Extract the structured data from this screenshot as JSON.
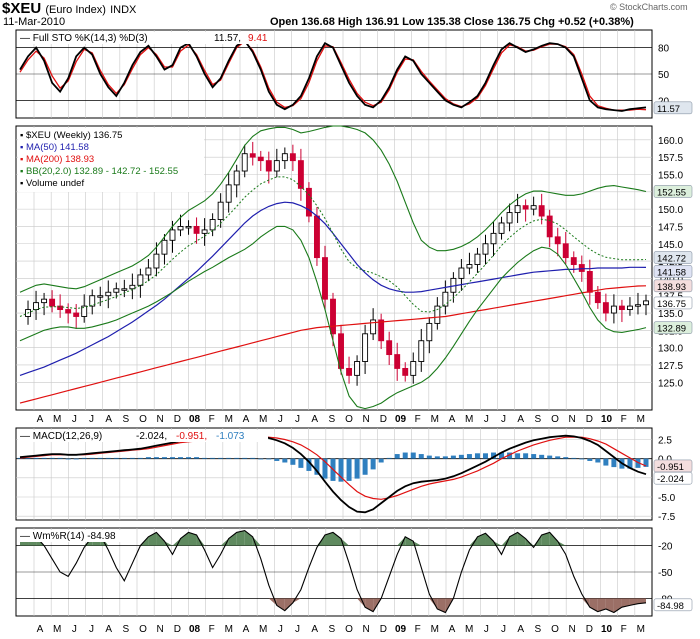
{
  "header": {
    "symbol": "$XEU",
    "name": "(Euro Index)",
    "exchange": "INDX",
    "date": "11-Mar-2010",
    "quote": "Open 136.68  High 136.91  Low 135.38  Close 136.75  Chg +0.52 (+0.38%)",
    "watermark": "© StockCharts.com"
  },
  "colors": {
    "up": "#000000",
    "down": "#cc0033",
    "ma50": "#1f1fae",
    "ma200": "#e01010",
    "bb": "#1a7a1a",
    "hist": "#2f7fbf",
    "willr_pos": "#5f8a5f",
    "willr_neg": "#9b6f66",
    "grid": "#c8c8c8",
    "pill": "#dfe6ee"
  },
  "chart_data": [
    {
      "type": "line",
      "title": "Full STO %K(14,3) %D(3) 11.57, 9.41",
      "legend": "Full STO %K(14,3) %D(3)",
      "legend_values": [
        "11.57",
        "9.41"
      ],
      "ylim": [
        0,
        100
      ],
      "yticks": [
        "80",
        "50",
        "20"
      ],
      "last_tag": "11.57",
      "series": [
        {
          "name": "%K",
          "values": [
            55,
            70,
            80,
            65,
            40,
            30,
            45,
            70,
            80,
            72,
            50,
            35,
            25,
            40,
            60,
            75,
            82,
            70,
            55,
            60,
            80,
            85,
            70,
            50,
            35,
            45,
            65,
            82,
            88,
            75,
            55,
            30,
            15,
            10,
            15,
            25,
            45,
            70,
            85,
            80,
            60,
            40,
            25,
            15,
            12,
            20,
            35,
            55,
            70,
            65,
            50,
            40,
            30,
            20,
            15,
            12,
            18,
            25,
            40,
            60,
            78,
            85,
            80,
            75,
            78,
            82,
            85,
            84,
            80,
            70,
            45,
            20,
            12,
            10,
            9,
            8,
            10,
            11,
            12
          ]
        },
        {
          "name": "%D",
          "values": [
            52,
            66,
            76,
            68,
            48,
            34,
            42,
            64,
            78,
            74,
            54,
            38,
            28,
            38,
            56,
            72,
            80,
            72,
            58,
            58,
            76,
            83,
            72,
            54,
            38,
            43,
            62,
            80,
            87,
            77,
            58,
            34,
            18,
            12,
            14,
            22,
            40,
            65,
            82,
            81,
            63,
            44,
            28,
            18,
            14,
            18,
            32,
            52,
            67,
            66,
            53,
            42,
            32,
            22,
            16,
            13,
            16,
            23,
            37,
            56,
            74,
            83,
            81,
            76,
            77,
            81,
            84,
            84,
            81,
            72,
            50,
            25,
            14,
            11,
            9,
            9,
            9,
            10,
            9.4
          ]
        }
      ]
    },
    {
      "type": "bar",
      "title": "$XEU (Weekly) 136.75",
      "legend": [
        "$XEU (Weekly) 136.75",
        "MA(50) 141.58",
        "MA(200) 138.93",
        "BB(20,2.0) 132.89 - 142.72 - 152.55",
        "Volume undef"
      ],
      "ylim": [
        121,
        162
      ],
      "yticks": [
        "160.0",
        "157.5",
        "155.0",
        "152.5",
        "150.0",
        "147.5",
        "145.0",
        "142.5",
        "140.0",
        "137.5",
        "135.0",
        "132.5",
        "130.0",
        "127.5",
        "125.0"
      ],
      "last_tags": [
        "152.55",
        "142.72",
        "141.58",
        "138.93",
        "136.75",
        "132.89"
      ],
      "series": [
        {
          "name": "$XEU",
          "values": [
            134.5,
            135.5,
            136.5,
            137.0,
            136.0,
            135.5,
            135.0,
            134.5,
            136.0,
            137.5,
            137.5,
            138.0,
            138.5,
            138.5,
            139.0,
            140.5,
            141.5,
            143.5,
            145.5,
            147.0,
            147.5,
            147.5,
            146.5,
            147.0,
            148.5,
            151.0,
            153.5,
            155.5,
            158.0,
            157.5,
            157.0,
            155.5,
            157.0,
            158.0,
            157.0,
            153.0,
            149.0,
            143.0,
            137.0,
            132.0,
            127.0,
            126.0,
            128.0,
            132.0,
            134.0,
            131.0,
            129.0,
            127.0,
            126.0,
            128.0,
            131.0,
            133.5,
            136.0,
            138.0,
            140.0,
            141.5,
            142.0,
            143.5,
            145.0,
            146.5,
            148.0,
            149.5,
            150.5,
            150.0,
            150.5,
            149.0,
            146.0,
            145.0,
            143.0,
            142.0,
            141.0,
            138.0,
            136.5,
            135.0,
            136.0,
            135.5,
            136.0,
            136.2,
            136.75
          ]
        },
        {
          "name": "MA(50)",
          "values": [
            126.0,
            126.4,
            126.8,
            127.2,
            127.7,
            128.2,
            128.7,
            129.2,
            129.8,
            130.4,
            131.0,
            131.6,
            132.3,
            133.0,
            133.7,
            134.5,
            135.3,
            136.1,
            137.0,
            138.0,
            139.0,
            140.0,
            141.0,
            142.1,
            143.2,
            144.4,
            145.6,
            146.8,
            148.0,
            149.0,
            149.8,
            150.4,
            150.8,
            151.0,
            150.9,
            150.5,
            149.9,
            149.0,
            147.9,
            146.5,
            145.0,
            143.5,
            142.0,
            140.8,
            139.8,
            139.0,
            138.5,
            138.2,
            138.0,
            138.0,
            138.1,
            138.3,
            138.5,
            138.7,
            138.9,
            139.1,
            139.3,
            139.5,
            139.7,
            139.9,
            140.1,
            140.3,
            140.5,
            140.7,
            140.9,
            141.0,
            141.1,
            141.2,
            141.3,
            141.3,
            141.4,
            141.4,
            141.5,
            141.5,
            141.5,
            141.5,
            141.6,
            141.6,
            141.58
          ]
        },
        {
          "name": "MA(200)",
          "values": [
            122.0,
            122.3,
            122.6,
            122.9,
            123.2,
            123.5,
            123.8,
            124.1,
            124.4,
            124.7,
            125.0,
            125.3,
            125.6,
            125.9,
            126.2,
            126.5,
            126.8,
            127.1,
            127.4,
            127.7,
            128.0,
            128.3,
            128.6,
            128.9,
            129.2,
            129.5,
            129.8,
            130.1,
            130.4,
            130.7,
            131.0,
            131.3,
            131.6,
            131.9,
            132.2,
            132.5,
            132.7,
            132.9,
            133.0,
            133.1,
            133.2,
            133.3,
            133.4,
            133.5,
            133.6,
            133.7,
            133.8,
            133.9,
            134.0,
            134.1,
            134.2,
            134.3,
            134.4,
            134.5,
            134.7,
            134.9,
            135.1,
            135.3,
            135.5,
            135.7,
            135.9,
            136.1,
            136.3,
            136.5,
            136.7,
            136.9,
            137.1,
            137.3,
            137.5,
            137.7,
            137.9,
            138.1,
            138.3,
            138.5,
            138.6,
            138.7,
            138.8,
            138.9,
            138.93
          ]
        },
        {
          "name": "BB upper",
          "values": [
            138.0,
            138.5,
            139.0,
            139.2,
            139.0,
            138.8,
            138.6,
            138.5,
            138.8,
            139.3,
            139.8,
            140.3,
            140.8,
            141.3,
            141.8,
            142.5,
            143.3,
            144.5,
            146.0,
            147.5,
            148.8,
            149.8,
            150.5,
            151.2,
            152.2,
            153.6,
            155.3,
            157.2,
            159.2,
            160.5,
            161.3,
            161.6,
            161.8,
            161.8,
            161.5,
            161.0,
            161.2,
            161.5,
            161.8,
            162.0,
            162.0,
            161.8,
            161.5,
            161.0,
            160.0,
            158.5,
            156.5,
            154.0,
            151.0,
            148.0,
            145.5,
            144.5,
            144.0,
            144.0,
            144.2,
            144.6,
            145.2,
            146.0,
            147.0,
            148.2,
            149.5,
            150.6,
            151.5,
            152.2,
            152.6,
            152.6,
            152.4,
            152.2,
            152.0,
            152.0,
            152.2,
            152.6,
            153.0,
            153.3,
            153.4,
            153.2,
            153.0,
            152.8,
            152.55
          ]
        },
        {
          "name": "BB lower",
          "values": [
            131.0,
            131.5,
            132.0,
            132.5,
            132.8,
            133.0,
            133.0,
            132.8,
            132.8,
            133.0,
            133.3,
            133.6,
            134.0,
            134.5,
            135.0,
            135.5,
            136.0,
            136.6,
            137.3,
            138.0,
            138.8,
            139.6,
            140.3,
            141.0,
            141.6,
            142.3,
            143.0,
            143.6,
            144.2,
            145.0,
            146.0,
            146.8,
            147.5,
            147.5,
            147.0,
            145.5,
            143.0,
            139.5,
            135.5,
            131.0,
            126.5,
            123.0,
            121.5,
            121.2,
            121.5,
            122.0,
            122.8,
            123.5,
            124.0,
            124.5,
            125.0,
            125.8,
            127.0,
            128.5,
            130.2,
            132.0,
            133.8,
            135.5,
            137.0,
            138.5,
            140.0,
            141.2,
            142.3,
            143.2,
            144.0,
            144.5,
            144.3,
            143.5,
            142.0,
            140.0,
            138.0,
            135.8,
            134.0,
            132.8,
            132.3,
            132.2,
            132.4,
            132.6,
            132.89
          ]
        }
      ]
    },
    {
      "type": "line",
      "title": "MACD(12,26,9) -2.024, -0.951, -1.073",
      "legend": "MACD(12,26,9)",
      "legend_values": [
        "-2.024",
        "-0.951",
        "-1.073"
      ],
      "ylim": [
        -8,
        4
      ],
      "yticks": [
        "2.5",
        "0.0",
        "-2.5",
        "-5.0",
        "-7.5"
      ],
      "last_tags": [
        "-0.951",
        "-2.024"
      ],
      "series": [
        {
          "name": "MACD",
          "values": [
            0.2,
            0.3,
            0.4,
            0.5,
            0.6,
            0.6,
            0.5,
            0.5,
            0.6,
            0.7,
            0.8,
            0.9,
            1.0,
            1.1,
            1.2,
            1.3,
            1.5,
            1.7,
            1.9,
            2.1,
            2.3,
            2.4,
            2.5,
            2.5,
            2.6,
            2.7,
            2.8,
            2.9,
            3.0,
            3.0,
            2.9,
            2.7,
            2.4,
            2.0,
            1.4,
            0.6,
            -0.4,
            -1.6,
            -3.0,
            -4.3,
            -5.4,
            -6.3,
            -6.9,
            -7.0,
            -6.6,
            -5.8,
            -5.0,
            -4.2,
            -3.6,
            -3.2,
            -3.0,
            -2.9,
            -2.8,
            -2.6,
            -2.3,
            -1.9,
            -1.4,
            -0.9,
            -0.4,
            0.2,
            0.8,
            1.3,
            1.7,
            2.1,
            2.4,
            2.6,
            2.8,
            2.9,
            3.0,
            2.9,
            2.7,
            2.3,
            1.8,
            1.0,
            0.2,
            -0.6,
            -1.2,
            -1.7,
            -2.024
          ]
        },
        {
          "name": "Signal",
          "values": [
            0.1,
            0.2,
            0.3,
            0.4,
            0.5,
            0.5,
            0.5,
            0.5,
            0.5,
            0.6,
            0.7,
            0.8,
            0.9,
            1.0,
            1.1,
            1.2,
            1.3,
            1.5,
            1.7,
            1.9,
            2.1,
            2.2,
            2.3,
            2.4,
            2.5,
            2.6,
            2.7,
            2.8,
            2.9,
            2.9,
            2.9,
            2.8,
            2.7,
            2.5,
            2.2,
            1.8,
            1.2,
            0.5,
            -0.4,
            -1.4,
            -2.4,
            -3.4,
            -4.3,
            -4.9,
            -5.2,
            -5.3,
            -5.1,
            -4.8,
            -4.4,
            -4.0,
            -3.6,
            -3.3,
            -3.1,
            -2.9,
            -2.7,
            -2.4,
            -2.0,
            -1.6,
            -1.1,
            -0.6,
            0.0,
            0.5,
            1.0,
            1.4,
            1.8,
            2.1,
            2.4,
            2.6,
            2.8,
            2.8,
            2.8,
            2.6,
            2.3,
            1.9,
            1.3,
            0.7,
            0.1,
            -0.5,
            -0.951
          ]
        }
      ]
    },
    {
      "type": "area",
      "title": "Wm%R(14) -84.98",
      "legend": "Wm%R(14) -84.98",
      "ylim": [
        -100,
        0
      ],
      "yticks": [
        "-20",
        "-50",
        "-80"
      ],
      "last_tag": "-84.98",
      "series": [
        {
          "name": "Wm%R",
          "values": [
            -8,
            -5,
            -10,
            -20,
            -35,
            -50,
            -55,
            -40,
            -22,
            -10,
            -8,
            -25,
            -45,
            -60,
            -40,
            -20,
            -10,
            -5,
            -15,
            -30,
            -12,
            -5,
            -8,
            -25,
            -45,
            -30,
            -12,
            -5,
            -3,
            -10,
            -35,
            -65,
            -88,
            -94,
            -85,
            -70,
            -45,
            -22,
            -8,
            -5,
            -12,
            -40,
            -70,
            -90,
            -95,
            -80,
            -55,
            -30,
            -10,
            -15,
            -45,
            -75,
            -92,
            -96,
            -80,
            -50,
            -25,
            -10,
            -6,
            -15,
            -30,
            -10,
            -5,
            -12,
            -22,
            -8,
            -5,
            -15,
            -30,
            -55,
            -75,
            -90,
            -95,
            -92,
            -96,
            -90,
            -88,
            -86,
            -84.98
          ]
        }
      ]
    }
  ],
  "x_axis": {
    "labels": [
      "A",
      "M",
      "J",
      "J",
      "A",
      "S",
      "O",
      "N",
      "D",
      "08",
      "F",
      "M",
      "A",
      "M",
      "J",
      "J",
      "A",
      "S",
      "O",
      "N",
      "D",
      "09",
      "F",
      "M",
      "A",
      "M",
      "J",
      "J",
      "A",
      "S",
      "O",
      "N",
      "D",
      "10",
      "F",
      "M"
    ],
    "bold": [
      "08",
      "09",
      "10"
    ]
  }
}
